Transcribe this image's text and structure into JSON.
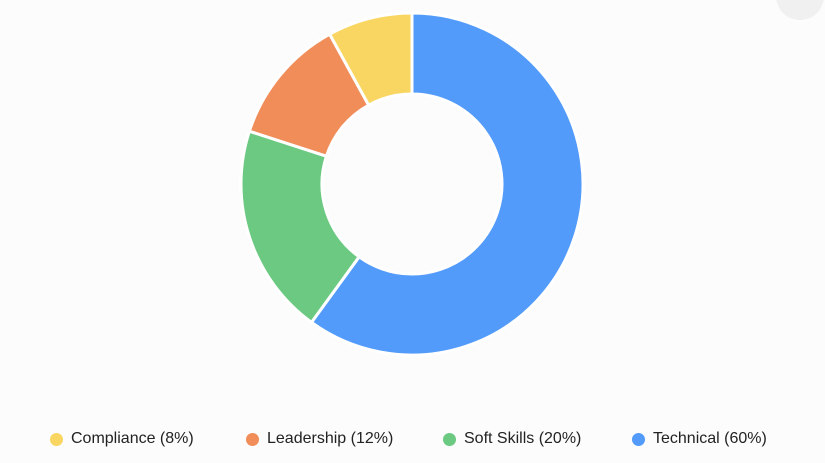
{
  "chart_data": {
    "type": "pie",
    "variant": "donut",
    "title": "",
    "categories": [
      "Technical",
      "Soft Skills",
      "Leadership",
      "Compliance"
    ],
    "values": [
      60,
      20,
      12,
      8
    ],
    "colors": [
      "#529bfa",
      "#6cc981",
      "#f08d59",
      "#f9d662"
    ],
    "legend_placement": "bottom",
    "legend": [
      {
        "label": "Compliance (8%)",
        "color": "#f9d662"
      },
      {
        "label": "Leadership (12%)",
        "color": "#f08d59"
      },
      {
        "label": "Soft Skills (20%)",
        "color": "#6cc981"
      },
      {
        "label": "Technical (60%)",
        "color": "#529bfa"
      }
    ]
  }
}
